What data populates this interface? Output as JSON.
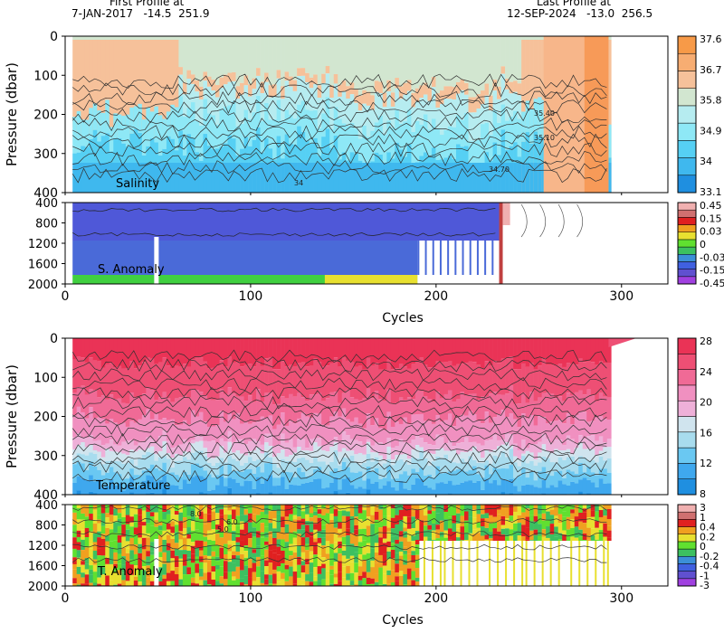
{
  "header": {
    "first_label": "First Profile at",
    "first_value": "7-JAN-2017   -14.5  251.9",
    "last_label": "Last Profile at",
    "last_value": "12-SEP-2024   -13.0  256.5"
  },
  "chart_data": [
    {
      "id": "salinity",
      "type": "heatmap",
      "title": "Salinity",
      "ylabel": "Pressure (dbar)",
      "xlim": [
        0,
        325
      ],
      "ylim": [
        400,
        0
      ],
      "yticks": [
        0,
        100,
        200,
        300,
        400
      ],
      "profile_cycles": [
        0,
        293
      ],
      "colorbar_labels": [
        "37.6",
        "36.7",
        "35.8",
        "34.9",
        "34",
        "33.1"
      ],
      "colors": [
        "#1f8fe0",
        "#3fb8ee",
        "#56d0f4",
        "#8ee8f6",
        "#b6ecf0",
        "#d2e6d0",
        "#f6c19a",
        "#f7ad72",
        "#f79a48"
      ],
      "contour_labels": [
        "34.70",
        "35.10",
        "35.40",
        "34"
      ]
    },
    {
      "id": "salinity_anomaly",
      "type": "heatmap",
      "title": "S. Anomaly",
      "xlabel": "Cycles",
      "xlim": [
        0,
        325
      ],
      "ylim": [
        2000,
        400
      ],
      "xticks": [
        0,
        100,
        200,
        300
      ],
      "yticks": [
        400,
        800,
        1200,
        1600,
        2000
      ],
      "colorbar_labels": [
        "0.45",
        "0.15",
        "0.03",
        "0",
        "-0.03",
        "-0.15",
        "-0.45"
      ],
      "colors": [
        "#a040e0",
        "#6050d0",
        "#4060e0",
        "#3b8fd8",
        "#3cc060",
        "#60e030",
        "#e8e030",
        "#f0a020",
        "#e02020",
        "#d07070",
        "#f0b0b0"
      ]
    },
    {
      "id": "temperature",
      "type": "heatmap",
      "title": "Temperature",
      "ylabel": "Pressure (dbar)",
      "xlim": [
        0,
        325
      ],
      "ylim": [
        400,
        0
      ],
      "yticks": [
        0,
        100,
        200,
        300,
        400
      ],
      "profile_cycles": [
        0,
        293
      ],
      "colorbar_labels": [
        "28",
        "24",
        "20",
        "16",
        "12",
        "8"
      ],
      "colors": [
        "#1f8fe0",
        "#3fa8ee",
        "#6ac8f2",
        "#a8dcee",
        "#d0e4ee",
        "#eeb0d8",
        "#f090c0",
        "#f06a96",
        "#ee4f74",
        "#ea3356"
      ]
    },
    {
      "id": "temperature_anomaly",
      "type": "heatmap",
      "title": "T. Anomaly",
      "xlabel": "Cycles",
      "xlim": [
        0,
        325
      ],
      "ylim": [
        2000,
        400
      ],
      "xticks": [
        0,
        100,
        200,
        300
      ],
      "yticks": [
        400,
        800,
        1200,
        1600,
        2000
      ],
      "colorbar_labels": [
        "3",
        "1",
        "0.4",
        "0.2",
        "0",
        "-0.2",
        "-0.4",
        "-1",
        "-3"
      ],
      "colors": [
        "#a040e0",
        "#6050d0",
        "#4060e0",
        "#3b8fd8",
        "#3cc060",
        "#60e030",
        "#e8e030",
        "#f0a020",
        "#e02020",
        "#d07070",
        "#f0b0b0"
      ],
      "contour_labels": [
        "8.0",
        "6.0",
        "5.0"
      ]
    }
  ]
}
